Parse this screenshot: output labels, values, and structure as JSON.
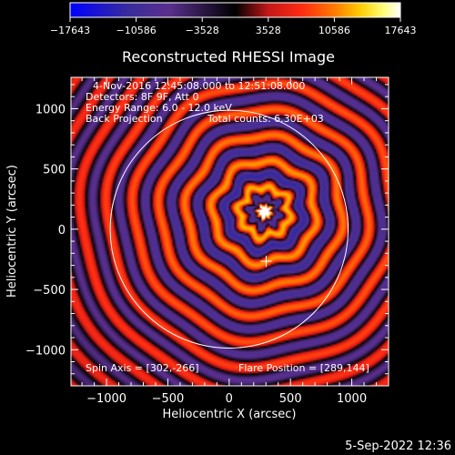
{
  "chart_data": {
    "type": "heatmap",
    "title": "Reconstructed RHESSI Image",
    "xlabel": "Heliocentric X (arcsec)",
    "ylabel": "Heliocentric Y (arcsec)",
    "xlim": [
      -1290,
      1300
    ],
    "ylim": [
      -1300,
      1260
    ],
    "x_ticks": [
      -1000,
      -500,
      0,
      500,
      1000
    ],
    "x_tick_labels": [
      "−1000",
      "−500",
      "0",
      "500",
      "1000"
    ],
    "y_ticks": [
      -1000,
      -500,
      0,
      500,
      1000
    ],
    "y_tick_labels": [
      "−1000",
      "−500",
      "0",
      "500",
      "1000"
    ],
    "colorbar": {
      "ticks": [
        -17643,
        -10586,
        -3528,
        3528,
        10586,
        17643
      ],
      "tick_labels": [
        "−17643",
        "−10586",
        "−3528",
        "3528",
        "10586",
        "17643"
      ],
      "range": [
        -17643,
        17643
      ]
    },
    "annotations": [
      "4-Nov-2016 12:45:08.000 to 12:51:08.000",
      "Detectors: 8F 9F, Att 0",
      "Energy Range: 6.0 - 12.0 keV",
      "Back Projection",
      "Total counts: 6.30E+03"
    ],
    "spin_axis_label": "Spin Axis = [302,-266]",
    "flare_position_label": "Flare Position = [289,144]",
    "spin_axis": [
      302,
      -266
    ],
    "flare_position": [
      289,
      144
    ],
    "source_peak_value": 17643,
    "solar_disk_radius_arcsec": 970,
    "grid": false
  },
  "footer": {
    "timestamp": "5-Sep-2022 12:36"
  },
  "colors": {
    "background": "#000000",
    "colormap": [
      "#0000ff",
      "#3a2d9a",
      "#5a2f8e",
      "#000000",
      "#c41818",
      "#ff2b12",
      "#ff7a00",
      "#ffd000",
      "#ffff80",
      "#ffffff"
    ]
  }
}
